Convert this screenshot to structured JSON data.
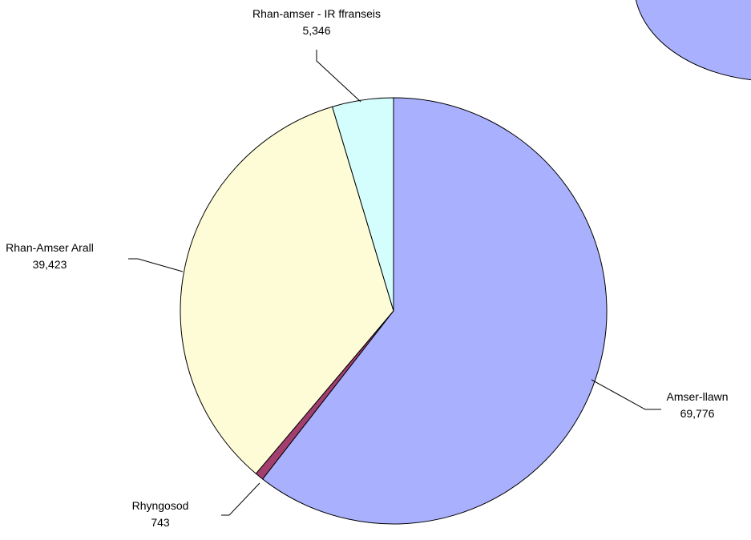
{
  "chart_data": {
    "type": "pie",
    "title": "",
    "start": "12 o'clock",
    "direction": "clockwise",
    "slices": [
      {
        "label": "Amser-llawn",
        "value": 69776,
        "value_text": "69,776",
        "color": "#a9b1fe"
      },
      {
        "label": "Rhyngosod",
        "value": 743,
        "value_text": "743",
        "color": "#a23f6e"
      },
      {
        "label": "Rhan-Amser Arall",
        "value": 39423,
        "value_text": "39,423",
        "color": "#fefcd7"
      },
      {
        "label": "Rhan-amser - IR ffranseis",
        "value": 5346,
        "value_text": "5,346",
        "color": "#d4fefe"
      }
    ],
    "legend": {
      "visible_part": "top-right",
      "color": "#a9b1fe"
    },
    "grid": false
  }
}
